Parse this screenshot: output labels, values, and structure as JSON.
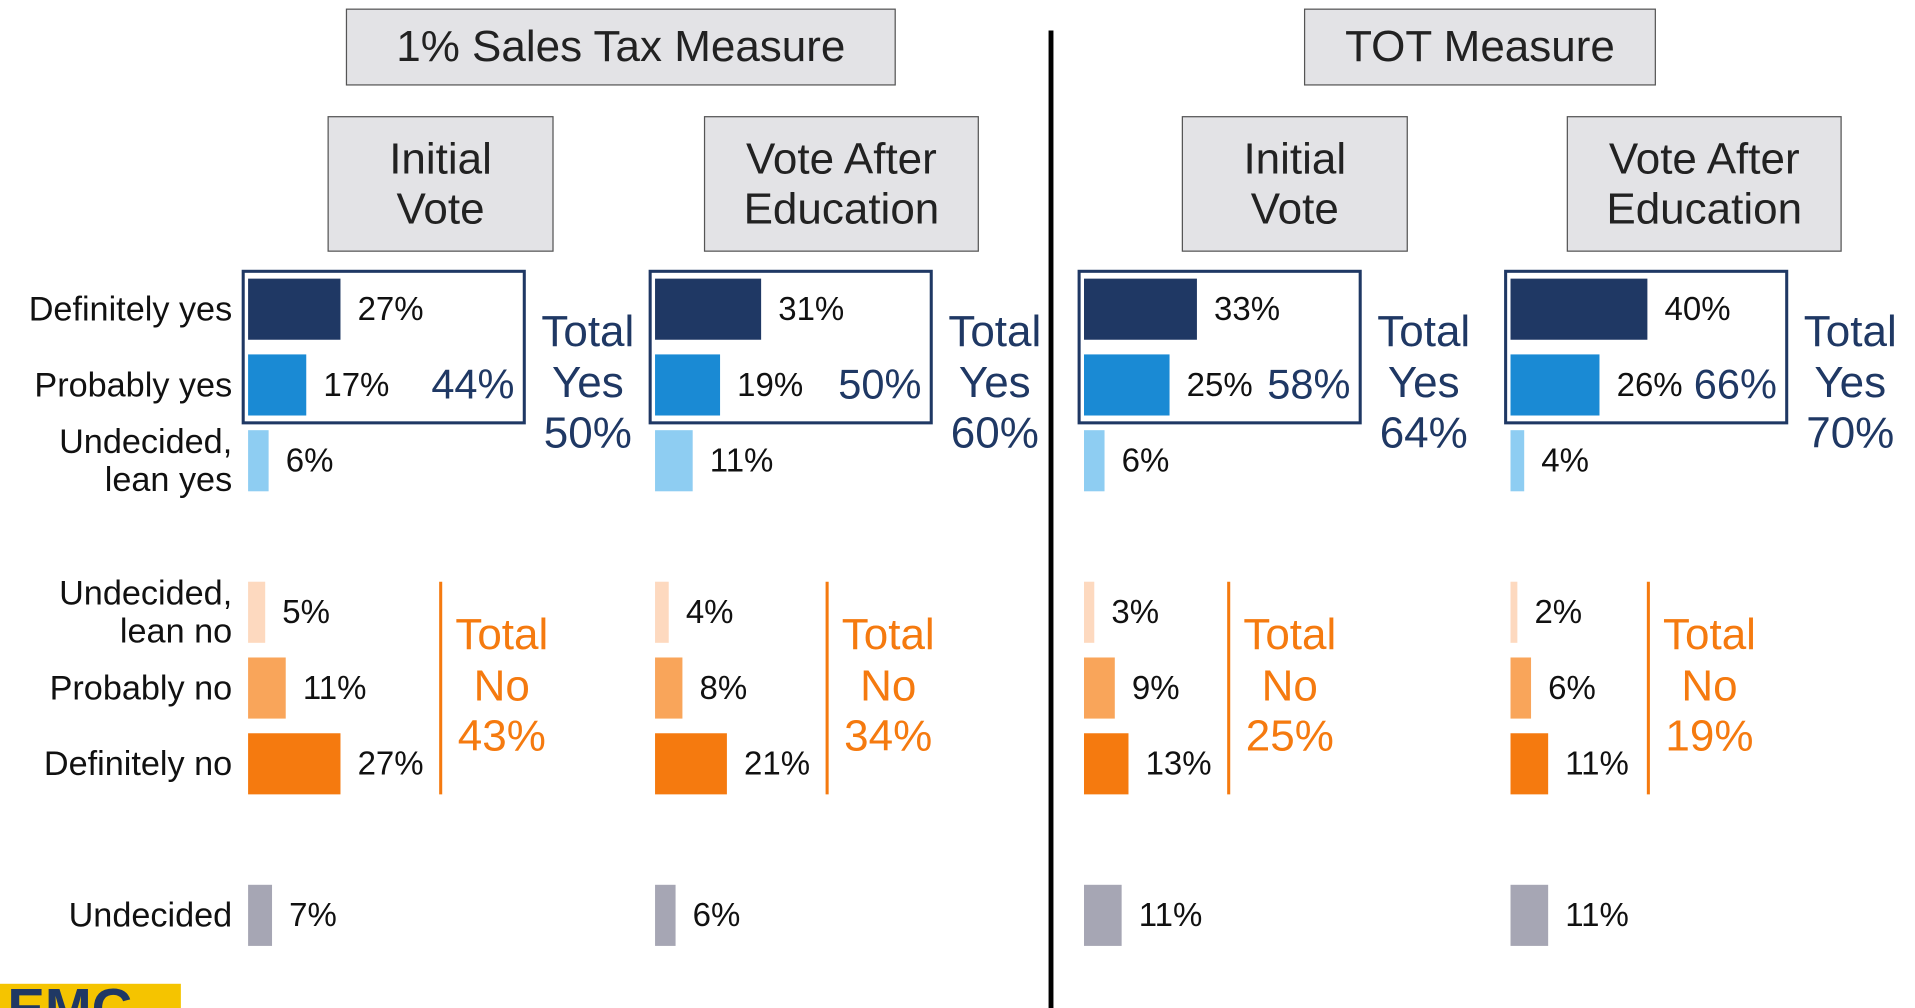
{
  "chart_data": {
    "type": "bar",
    "orientation": "horizontal",
    "categories": [
      "Definitely yes",
      "Probably yes",
      "Undecided,\nlean yes",
      "Undecided,\nlean no",
      "Probably no",
      "Definitely no",
      "Undecided"
    ],
    "colors": [
      "#1f3864",
      "#1a8ad4",
      "#8ecdf2",
      "#fdd9bf",
      "#f9a55a",
      "#f57a0f",
      "#a6a6b4"
    ],
    "total_yes_text": "Total\nYes",
    "total_no_text": "Total\nNo",
    "yes_color": "#1f3864",
    "no_color": "#f57a0f",
    "logo": "EMC",
    "measures": [
      {
        "title": "1% Sales Tax Measure",
        "panels": [
          {
            "title": "Initial\nVote",
            "values": [
              27,
              17,
              6,
              5,
              11,
              27,
              7
            ],
            "value_labels": [
              "27%",
              "17%",
              "6%",
              "5%",
              "11%",
              "27%",
              "7%"
            ],
            "top2": 44,
            "top2_label": "44%",
            "total_yes": 50,
            "total_yes_label": "50%",
            "total_no": 43,
            "total_no_label": "43%"
          },
          {
            "title": "Vote After\nEducation",
            "values": [
              31,
              19,
              11,
              4,
              8,
              21,
              6
            ],
            "value_labels": [
              "31%",
              "19%",
              "11%",
              "4%",
              "8%",
              "21%",
              "6%"
            ],
            "top2": 50,
            "top2_label": "50%",
            "total_yes": 60,
            "total_yes_label": "60%",
            "total_no": 34,
            "total_no_label": "34%"
          }
        ]
      },
      {
        "title": "TOT Measure",
        "panels": [
          {
            "title": "Initial\nVote",
            "values": [
              33,
              25,
              6,
              3,
              9,
              13,
              11
            ],
            "value_labels": [
              "33%",
              "25%",
              "6%",
              "3%",
              "9%",
              "13%",
              "11%"
            ],
            "top2": 58,
            "top2_label": "58%",
            "total_yes": 64,
            "total_yes_label": "64%",
            "total_no": 25,
            "total_no_label": "25%"
          },
          {
            "title": "Vote After\nEducation",
            "values": [
              40,
              26,
              4,
              2,
              6,
              11,
              11
            ],
            "value_labels": [
              "40%",
              "26%",
              "4%",
              "2%",
              "6%",
              "11%",
              "11%"
            ],
            "top2": 66,
            "top2_label": "66%",
            "total_yes": 70,
            "total_yes_label": "70%",
            "total_no": 19,
            "total_no_label": "19%"
          }
        ]
      }
    ]
  }
}
